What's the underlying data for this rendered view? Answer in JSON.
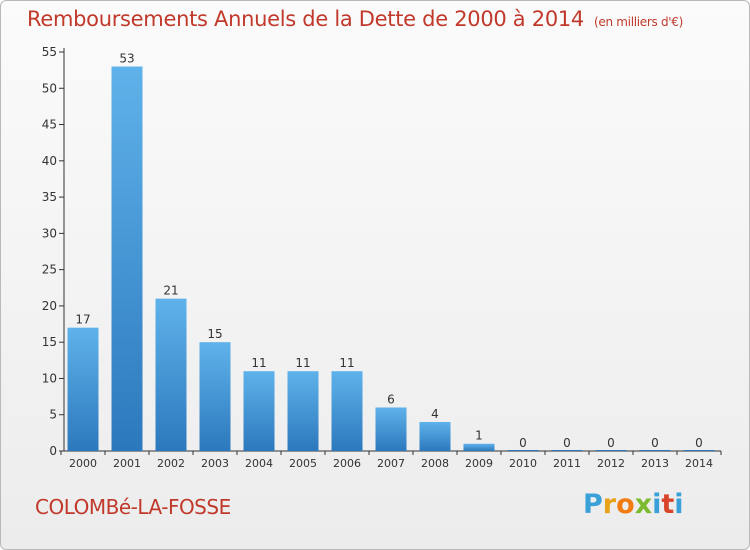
{
  "header": {
    "title": "Remboursements Annuels de la Dette de 2000 à 2014",
    "unit": "(en milliers d'€)"
  },
  "footer": {
    "commune": "COLOMBé-LA-FOSSE",
    "logo_text": "Proxiti",
    "logo_colors": [
      "#3aa0d8",
      "#e8a21a",
      "#f07c12",
      "#7cba2f",
      "#3aa0d8",
      "#d8442a",
      "#3aa0d8"
    ]
  },
  "colors": {
    "title": "#c0392b",
    "bar_light": "#5aaee8",
    "bar_dark": "#2f7fc4",
    "axis": "#333333"
  },
  "chart_data": {
    "type": "bar",
    "title": "Remboursements Annuels de la Dette de 2000 à 2014",
    "categories": [
      "2000",
      "2001",
      "2002",
      "2003",
      "2004",
      "2005",
      "2006",
      "2007",
      "2008",
      "2009",
      "2010",
      "2011",
      "2012",
      "2013",
      "2014"
    ],
    "values": [
      17,
      53,
      21,
      15,
      11,
      11,
      11,
      6,
      4,
      1,
      0,
      0,
      0,
      0,
      0
    ],
    "ylim": [
      0,
      55
    ],
    "yticks": [
      0,
      5,
      10,
      15,
      20,
      25,
      30,
      35,
      40,
      45,
      50,
      55
    ],
    "grid": false,
    "xlabel": "",
    "ylabel": ""
  }
}
